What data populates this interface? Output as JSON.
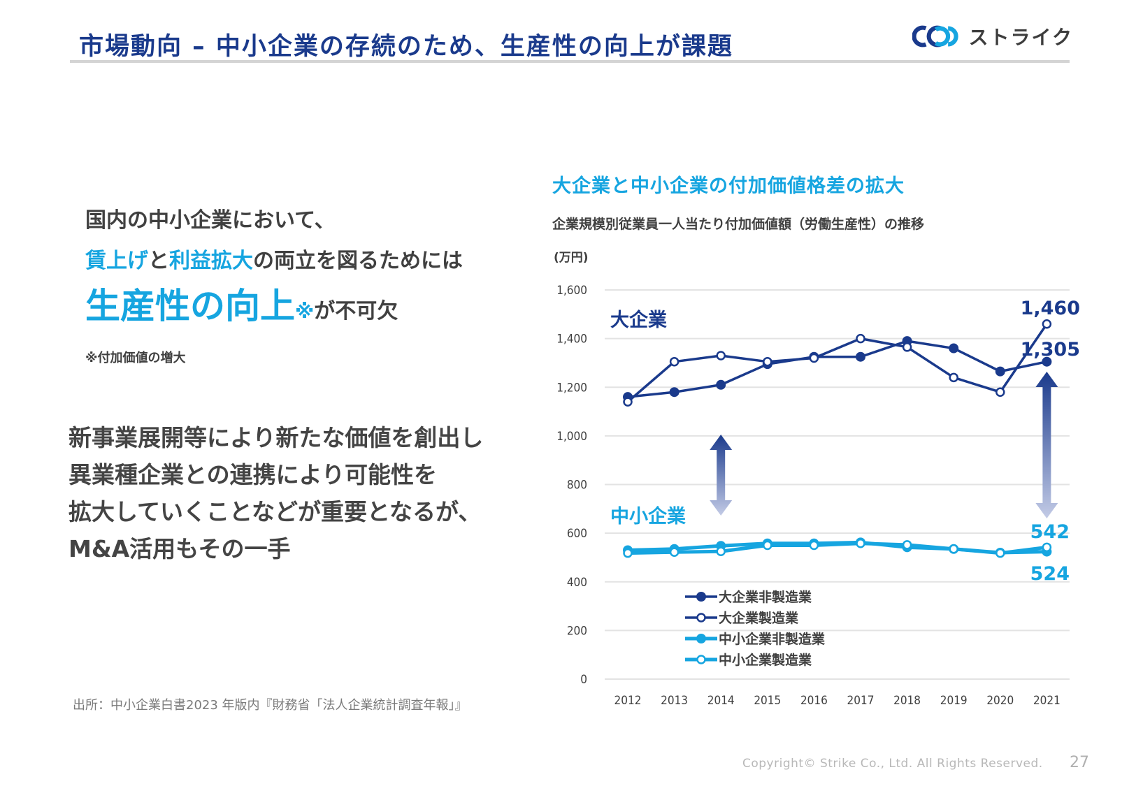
{
  "header": {
    "title": "市場動向 – 中小企業の存続のため、生産性の向上が課題",
    "logo_text": "ストライク",
    "logo_icon": "strike-rings-logo-icon"
  },
  "left": {
    "lead1": "国内の中小企業において、",
    "lead2_hl1": "賃上げ",
    "lead2_mid": "と",
    "lead2_hl2": "利益拡大",
    "lead2_tail": "の両立を図るためには",
    "lead3_hl": "生産性の向上",
    "lead3_mark": "※",
    "lead3_tail": "が不可欠",
    "footnote": "※付加価値の増大",
    "body_lines": [
      "新事業展開等により新たな価値を創出し",
      "異業種企業との連携により可能性を",
      "拡大していくことなどが重要となるが、",
      "M&A活用もその一手"
    ],
    "source": "出所：中小企業白書2023 年版内『財務省「法人企業統計調査年報」』"
  },
  "footer": {
    "copyright": "Copyright© Strike Co., Ltd. All Rights Reserved.",
    "page_number": "27"
  },
  "colors": {
    "large": "#1a3a8c",
    "sme": "#16a5e0",
    "grid": "#e3e3e3"
  },
  "chart_data": {
    "type": "line",
    "title": "大企業と中小企業の付加価値格差の拡大",
    "subtitle": "企業規模別従業員一人当たり付加価値額（労働生産性）の推移",
    "ylabel": "(万円)",
    "xlabel": "",
    "ylim": [
      0,
      1600
    ],
    "yticks": [
      0,
      200,
      400,
      600,
      800,
      1000,
      1200,
      1400,
      1600
    ],
    "ytick_labels": [
      "0",
      "200",
      "400",
      "600",
      "800",
      "1,000",
      "1,200",
      "1,400",
      "1,600"
    ],
    "grid": true,
    "legend_position": "bottom-center",
    "x": [
      "2012",
      "2013",
      "2014",
      "2015",
      "2016",
      "2017",
      "2018",
      "2019",
      "2020",
      "2021"
    ],
    "series": [
      {
        "name": "大企業非製造業",
        "group": "large",
        "marker": "filled",
        "values": [
          1160,
          1180,
          1210,
          1295,
          1325,
          1325,
          1390,
          1360,
          1265,
          1305
        ]
      },
      {
        "name": "大企業製造業",
        "group": "large",
        "marker": "hollow",
        "values": [
          1140,
          1305,
          1330,
          1305,
          1320,
          1400,
          1365,
          1240,
          1180,
          1460
        ]
      },
      {
        "name": "中小企業非製造業",
        "group": "sme",
        "marker": "filled",
        "values": [
          530,
          535,
          548,
          558,
          558,
          562,
          542,
          535,
          520,
          524
        ]
      },
      {
        "name": "中小企業製造業",
        "group": "sme",
        "marker": "hollow",
        "values": [
          518,
          522,
          525,
          550,
          550,
          558,
          552,
          535,
          518,
          542
        ]
      }
    ],
    "annotations": {
      "group_labels": [
        {
          "text": "大企業",
          "group": "large"
        },
        {
          "text": "中小企業",
          "group": "sme"
        }
      ],
      "value_labels": [
        {
          "text": "1,460",
          "series": 1,
          "x": "2021",
          "group": "large"
        },
        {
          "text": "1,305",
          "series": 0,
          "x": "2021",
          "group": "large"
        },
        {
          "text": "542",
          "series": 3,
          "x": "2021",
          "group": "sme"
        },
        {
          "text": "524",
          "series": 2,
          "x": "2021",
          "group": "sme"
        }
      ],
      "gap_arrows": [
        {
          "x": "2014",
          "from": 550,
          "to": 1200,
          "meaning": "gap-2014"
        },
        {
          "x": "2021",
          "from": 524,
          "to": 1305,
          "meaning": "gap-2021"
        }
      ]
    }
  }
}
